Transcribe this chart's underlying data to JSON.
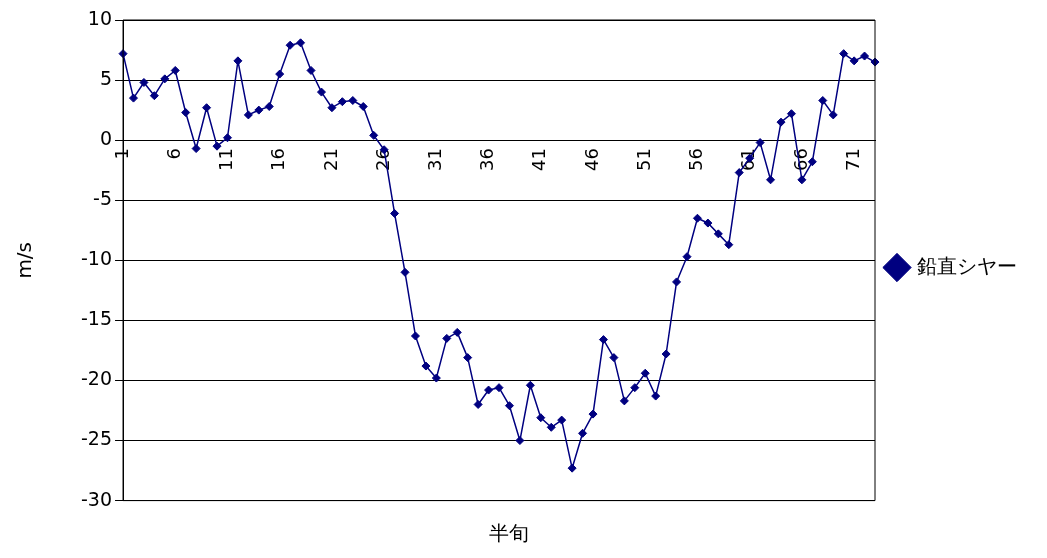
{
  "chart_data": {
    "type": "line",
    "xlabel": "半旬",
    "ylabel": "m/s",
    "categories": [
      "1",
      null,
      null,
      null,
      null,
      "6",
      null,
      null,
      null,
      null,
      "11",
      null,
      null,
      null,
      null,
      "16",
      null,
      null,
      null,
      null,
      "21",
      null,
      null,
      null,
      null,
      "26",
      null,
      null,
      null,
      null,
      "31",
      null,
      null,
      null,
      null,
      "36",
      null,
      null,
      null,
      null,
      "41",
      null,
      null,
      null,
      null,
      "46",
      null,
      null,
      null,
      null,
      "51",
      null,
      null,
      null,
      null,
      "56",
      null,
      null,
      null,
      null,
      "61",
      null,
      null,
      null,
      null,
      "66",
      null,
      null,
      null,
      null,
      "71",
      null,
      null
    ],
    "series": [
      {
        "name": "鉛直シヤー",
        "color": "#000080",
        "values": [
          7.2,
          3.5,
          4.8,
          3.7,
          5.1,
          5.8,
          2.3,
          -0.7,
          2.7,
          -0.5,
          0.2,
          6.6,
          2.1,
          2.5,
          2.8,
          5.5,
          7.9,
          8.1,
          5.8,
          4.0,
          2.7,
          3.2,
          3.3,
          2.8,
          0.4,
          -0.8,
          -6.1,
          -11.0,
          -16.3,
          -18.8,
          -19.8,
          -16.5,
          -16.0,
          -18.1,
          -22.0,
          -20.8,
          -20.6,
          -22.1,
          -25.0,
          -20.4,
          -23.1,
          -23.9,
          -23.3,
          -27.3,
          -24.4,
          -22.8,
          -16.6,
          -18.1,
          -21.7,
          -20.6,
          -19.4,
          -21.3,
          -17.8,
          -11.8,
          -9.7,
          -6.5,
          -6.9,
          -7.8,
          -8.7,
          -2.7,
          -1.5,
          -0.2,
          -3.3,
          1.5,
          2.2,
          -3.3,
          -1.8,
          3.3,
          2.1,
          7.2,
          6.6,
          7.0,
          6.5
        ]
      }
    ],
    "ylim": [
      -30,
      10
    ],
    "yticks": [
      -30,
      -25,
      -20,
      -15,
      -10,
      -5,
      0,
      5,
      10
    ],
    "grid": "y",
    "legend": "right",
    "marker": "diamond",
    "line_style": "solid"
  }
}
